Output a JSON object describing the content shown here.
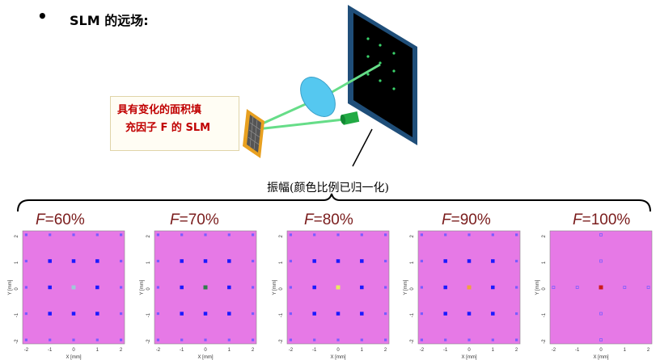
{
  "header": {
    "bullet": "•",
    "title": "SLM 的远场:"
  },
  "slm_callout": {
    "line1": "具有变化的面积填",
    "line2": "充因子  F  的  SLM"
  },
  "caption": "振幅(颜色比例已归一化)",
  "colors": {
    "plot_bg": "#e679e6",
    "spot_strong": "#1a1aff",
    "spot_weak": "#7a5cff",
    "screen_frame": "#1f4e79",
    "beam": "#66dd88",
    "lens": "#55c8f0",
    "slm_frame": "#e8a020",
    "label_red": "#c00000",
    "f_label": "#7a1c1c"
  },
  "axes": {
    "xlabel": "X [mm]",
    "ylabel": "Y [mm]",
    "xticks": [
      "-2",
      "-1",
      "0",
      "1",
      "2"
    ],
    "yticks": [
      "2",
      "1",
      "0",
      "-1",
      "-2"
    ]
  },
  "panels": [
    {
      "var": "F",
      "eq": "=60%",
      "center_color": "#a0c8d8"
    },
    {
      "var": "F",
      "eq": "=70%",
      "center_color": "#2e7d4a"
    },
    {
      "var": "F",
      "eq": "=80%",
      "center_color": "#e8ec60"
    },
    {
      "var": "F",
      "eq": "=90%",
      "center_color": "#f0a040"
    },
    {
      "var": "F",
      "eq": "=100%",
      "center_color": "#cc1a1a"
    }
  ]
}
